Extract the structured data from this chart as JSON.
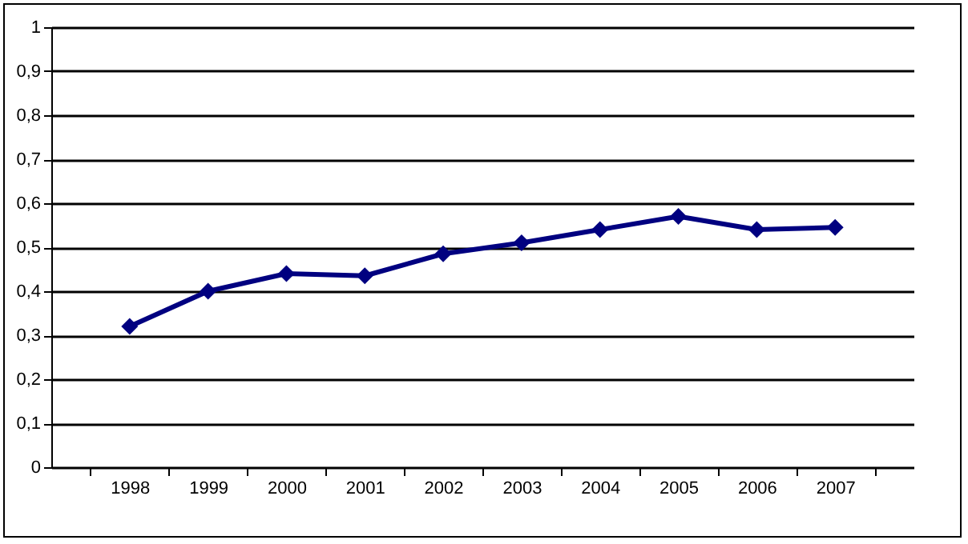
{
  "chart_data": {
    "type": "line",
    "categories": [
      "1998",
      "1999",
      "2000",
      "2001",
      "2002",
      "2003",
      "2004",
      "2005",
      "2006",
      "2007"
    ],
    "series": [
      {
        "color": "#000080",
        "values": [
          0.32,
          0.4,
          0.44,
          0.435,
          0.485,
          0.51,
          0.54,
          0.57,
          0.54,
          0.545
        ]
      }
    ],
    "ylim": [
      0,
      1
    ],
    "yticks": [
      {
        "value": 0,
        "label": "0"
      },
      {
        "value": 0.1,
        "label": "0,1"
      },
      {
        "value": 0.2,
        "label": "0,2"
      },
      {
        "value": 0.3,
        "label": "0,3"
      },
      {
        "value": 0.4,
        "label": "0,4"
      },
      {
        "value": 0.5,
        "label": "0,5"
      },
      {
        "value": 0.6,
        "label": "0,6"
      },
      {
        "value": 0.7,
        "label": "0,7"
      },
      {
        "value": 0.8,
        "label": "0,8"
      },
      {
        "value": 0.9,
        "label": "0,9"
      },
      {
        "value": 1,
        "label": "1"
      }
    ],
    "grid": "y",
    "marker": "diamond",
    "line_style": "solid"
  }
}
